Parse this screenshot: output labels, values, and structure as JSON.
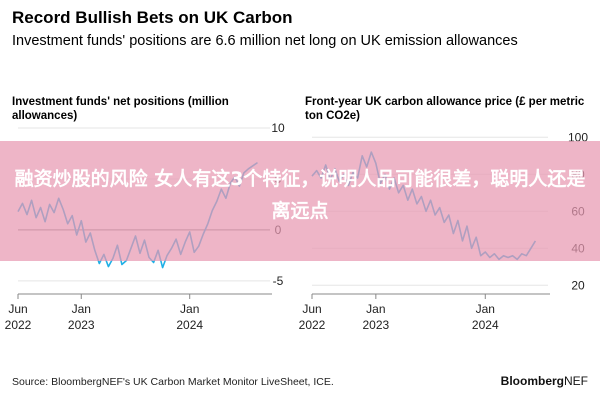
{
  "header": {
    "title": "Record Bullish Bets on UK Carbon",
    "subtitle": "Investment funds' positions are 6.6 million net long on UK emission allowances"
  },
  "overlay": {
    "text": "融资炒股的风险 女人有这3个特征，说明人品可能很差，聪明人还是离远点"
  },
  "footer": {
    "source": "Source: BloombergNEF's UK Carbon Market Monitor LiveSheet, ICE.",
    "brand_bold": "Bloomberg",
    "brand_light": "NEF"
  },
  "colors": {
    "series": "#1fb0e6",
    "zero_line": "#999999",
    "grid": "#e5e5e5",
    "overlay": "#e898b2"
  },
  "chart_data": [
    {
      "type": "line",
      "title": "Investment funds' net positions (million allowances)",
      "x_ticks": [
        {
          "label": "Jun",
          "sub": "2022",
          "t": 0
        },
        {
          "label": "Jan",
          "sub": "2023",
          "t": 7
        },
        {
          "label": "Jan",
          "sub": "2024",
          "t": 19
        }
      ],
      "xlim": [
        0,
        27
      ],
      "y_ticks": [
        10,
        5,
        0,
        -5
      ],
      "ylim": [
        -5.8,
        10
      ],
      "zero_line": true,
      "series": [
        {
          "x": [
            0,
            0.5,
            1,
            1.5,
            2,
            2.5,
            3,
            3.5,
            4,
            4.5,
            5,
            5.5,
            6,
            6.5,
            7,
            7.5,
            8,
            8.5,
            9,
            9.5,
            10,
            10.5,
            11,
            11.5,
            12,
            12.5,
            13,
            13.5,
            14,
            14.5,
            15,
            15.5,
            16,
            16.5,
            17,
            17.5,
            18,
            18.5,
            19,
            19.5,
            20,
            20.5,
            21,
            21.5,
            22,
            22.5,
            23,
            23.5,
            24,
            24.5,
            25,
            25.5,
            26,
            26.5
          ],
          "y": [
            1.8,
            2.6,
            1.5,
            2.9,
            1.2,
            2.2,
            0.8,
            2.5,
            1.7,
            3.1,
            2.0,
            0.6,
            1.4,
            -0.5,
            0.9,
            -1.2,
            -0.3,
            -2.0,
            -3.3,
            -2.4,
            -3.6,
            -2.8,
            -1.5,
            -3.4,
            -3.0,
            -1.8,
            -0.6,
            -2.3,
            -1.0,
            -2.7,
            -3.2,
            -2.0,
            -3.7,
            -2.5,
            -1.8,
            -0.9,
            -2.4,
            -1.2,
            -0.2,
            -2.2,
            -1.6,
            -0.4,
            0.6,
            1.9,
            2.8,
            4.0,
            3.1,
            4.6,
            5.2,
            4.3,
            5.6,
            6.0,
            6.3,
            6.6
          ]
        }
      ]
    },
    {
      "type": "line",
      "title": "Front-year UK carbon allowance price (£ per metric ton CO2e)",
      "x_ticks": [
        {
          "label": "Jun",
          "sub": "2022",
          "t": 0
        },
        {
          "label": "Jan",
          "sub": "2023",
          "t": 7
        },
        {
          "label": "Jan",
          "sub": "2024",
          "t": 19
        }
      ],
      "xlim": [
        0,
        25
      ],
      "y_ticks": [
        100,
        80,
        60,
        40,
        20
      ],
      "ylim": [
        18,
        105
      ],
      "zero_line": false,
      "series": [
        {
          "x": [
            0,
            0.5,
            1,
            1.5,
            2,
            2.5,
            3,
            3.5,
            4,
            4.5,
            5,
            5.5,
            6,
            6.5,
            7,
            7.5,
            8,
            8.5,
            9,
            9.5,
            10,
            10.5,
            11,
            11.5,
            12,
            12.5,
            13,
            13.5,
            14,
            14.5,
            15,
            15.5,
            16,
            16.5,
            17,
            17.5,
            18,
            18.5,
            19,
            19.5,
            20,
            20.5,
            21,
            21.5,
            22,
            22.5,
            23,
            23.5,
            24,
            24.5
          ],
          "y": [
            79,
            82,
            78,
            85,
            77,
            83,
            76,
            80,
            74,
            81,
            78,
            90,
            84,
            92,
            86,
            75,
            80,
            72,
            78,
            70,
            74,
            66,
            72,
            64,
            68,
            60,
            66,
            58,
            62,
            54,
            58,
            48,
            55,
            44,
            52,
            40,
            46,
            36,
            38,
            35,
            37,
            34,
            36,
            35,
            36,
            34,
            37,
            36,
            40,
            44
          ]
        }
      ]
    }
  ]
}
